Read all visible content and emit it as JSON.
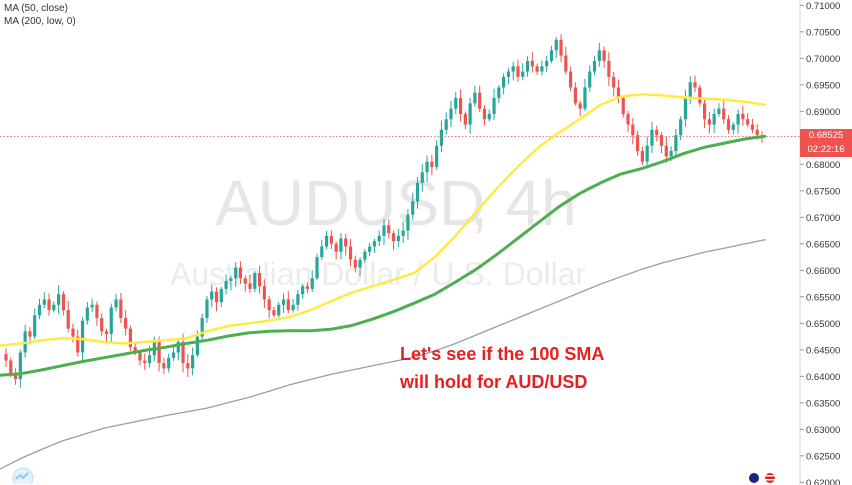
{
  "legend": {
    "ma50": "MA (50, close)",
    "ma200": "MA (200, low, 0)"
  },
  "watermark": {
    "symbol": "AUDUSD",
    "interval": ", 4h",
    "description": "Australian Dollar / U.S. Dollar"
  },
  "annotation": {
    "line1": "Let's see if the 100 SMA",
    "line2": "will hold for AUD/USD"
  },
  "price_tag": {
    "price": "0.68525",
    "countdown": "02:22:16",
    "color": "#ef5350"
  },
  "colors": {
    "up": "#26a69a",
    "down": "#ef5350",
    "ma50": "#ffeb3b",
    "ma100": "#4caf50",
    "ma200": "#9e9e9e"
  },
  "chart_data": {
    "type": "line",
    "instrument": "AUDUSD",
    "timeframe": "4h",
    "ylim": [
      0.6195,
      0.711
    ],
    "yticks": [
      "0.62000",
      "0.62500",
      "0.63000",
      "0.63500",
      "0.64000",
      "0.64500",
      "0.65000",
      "0.65500",
      "0.66000",
      "0.66500",
      "0.67000",
      "0.67500",
      "0.68000",
      "0.68500",
      "0.69000",
      "0.69500",
      "0.70000",
      "0.70500",
      "0.71000"
    ],
    "last_price": 0.68525,
    "candles_close_path": [
      0.643,
      0.6405,
      0.6395,
      0.6445,
      0.6485,
      0.6475,
      0.6515,
      0.6535,
      0.6545,
      0.6525,
      0.6535,
      0.6555,
      0.6525,
      0.649,
      0.6475,
      0.6445,
      0.6505,
      0.653,
      0.6535,
      0.651,
      0.6485,
      0.648,
      0.653,
      0.6545,
      0.651,
      0.649,
      0.6455,
      0.6445,
      0.643,
      0.6425,
      0.644,
      0.6465,
      0.6425,
      0.6415,
      0.6435,
      0.6445,
      0.6465,
      0.6425,
      0.6415,
      0.644,
      0.6475,
      0.651,
      0.6545,
      0.656,
      0.654,
      0.6565,
      0.658,
      0.6585,
      0.6605,
      0.6585,
      0.6575,
      0.6565,
      0.6595,
      0.657,
      0.6545,
      0.6525,
      0.6515,
      0.6535,
      0.6545,
      0.6525,
      0.6535,
      0.6555,
      0.657,
      0.6565,
      0.6585,
      0.6625,
      0.6645,
      0.6665,
      0.665,
      0.6635,
      0.666,
      0.6645,
      0.662,
      0.6605,
      0.662,
      0.6635,
      0.6645,
      0.6655,
      0.6665,
      0.6685,
      0.667,
      0.6655,
      0.6665,
      0.6675,
      0.6705,
      0.673,
      0.6765,
      0.6785,
      0.6805,
      0.6795,
      0.6835,
      0.6865,
      0.6885,
      0.6905,
      0.6925,
      0.6895,
      0.6875,
      0.6915,
      0.6935,
      0.6905,
      0.6885,
      0.6895,
      0.6925,
      0.6945,
      0.6965,
      0.6975,
      0.6985,
      0.6965,
      0.6975,
      0.6995,
      0.6985,
      0.6975,
      0.6985,
      0.6995,
      0.7015,
      0.7035,
      0.7005,
      0.6975,
      0.6945,
      0.6915,
      0.6905,
      0.6945,
      0.6975,
      0.6995,
      0.7015,
      0.6995,
      0.6965,
      0.6945,
      0.6925,
      0.6895,
      0.6875,
      0.6855,
      0.6825,
      0.6805,
      0.6835,
      0.6865,
      0.6855,
      0.6835,
      0.6815,
      0.6825,
      0.6855,
      0.6885,
      0.6925,
      0.6955,
      0.6945,
      0.6915,
      0.6885,
      0.6875,
      0.6895,
      0.6905,
      0.6885,
      0.6865,
      0.6875,
      0.6895,
      0.6885,
      0.6875,
      0.6865,
      0.6855,
      0.6852
    ],
    "series": [
      {
        "name": "MA (50, close)",
        "values": [
          0.6458,
          0.6462,
          0.6468,
          0.6472,
          0.647,
          0.6465,
          0.6462,
          0.6465,
          0.6468,
          0.6472,
          0.6485,
          0.6495,
          0.65,
          0.6505,
          0.6512,
          0.6525,
          0.6542,
          0.6558,
          0.657,
          0.6582,
          0.6595,
          0.6625,
          0.6665,
          0.671,
          0.6755,
          0.6795,
          0.6832,
          0.686,
          0.6885,
          0.6912,
          0.6928,
          0.6932,
          0.693,
          0.6926,
          0.6924,
          0.6922,
          0.6918,
          0.6912
        ]
      },
      {
        "name": "",
        "values": [
          0.6402,
          0.6405,
          0.6412,
          0.642,
          0.6428,
          0.6435,
          0.6442,
          0.6449,
          0.6455,
          0.6462,
          0.6468,
          0.6476,
          0.6482,
          0.6485,
          0.6486,
          0.6486,
          0.6489,
          0.6496,
          0.6508,
          0.6522,
          0.6538,
          0.6555,
          0.6578,
          0.6602,
          0.663,
          0.666,
          0.669,
          0.672,
          0.6745,
          0.6765,
          0.6782,
          0.6792,
          0.6805,
          0.682,
          0.6832,
          0.684,
          0.6848,
          0.6853
        ]
      },
      {
        "name": "MA (200, low, 0)",
        "values": [
          0.6225,
          0.6245,
          0.6262,
          0.6278,
          0.629,
          0.6302,
          0.631,
          0.6318,
          0.6326,
          0.6333,
          0.634,
          0.635,
          0.636,
          0.6372,
          0.6384,
          0.6394,
          0.6404,
          0.6412,
          0.642,
          0.6428,
          0.6436,
          0.6448,
          0.6462,
          0.6478,
          0.6494,
          0.651,
          0.6526,
          0.6542,
          0.6558,
          0.6574,
          0.6588,
          0.6602,
          0.6614,
          0.6624,
          0.6634,
          0.6642,
          0.665,
          0.6658
        ]
      }
    ],
    "grid": false,
    "legend": "top-left"
  }
}
